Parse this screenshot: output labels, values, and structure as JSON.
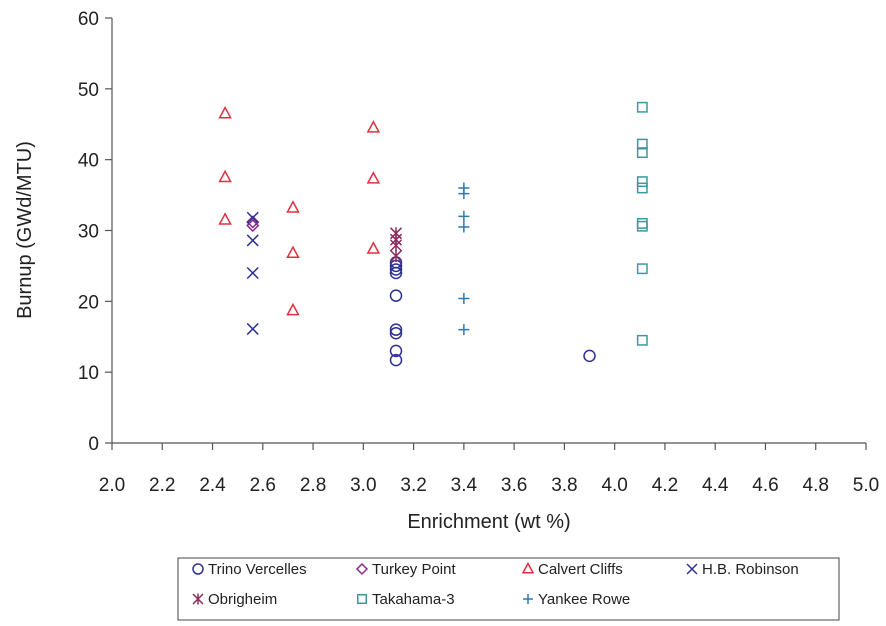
{
  "chart_data": {
    "type": "scatter",
    "title": "",
    "xlabel": "Enrichment (wt %)",
    "ylabel": "Burnup (GWd/MTU)",
    "xlim": [
      2.0,
      5.0
    ],
    "ylim": [
      0,
      60
    ],
    "x_ticks": [
      "2.0",
      "2.2",
      "2.4",
      "2.6",
      "2.8",
      "3.0",
      "3.2",
      "3.4",
      "3.6",
      "3.8",
      "4.0",
      "4.2",
      "4.4",
      "4.6",
      "4.8",
      "5.0"
    ],
    "y_ticks": [
      "0",
      "10",
      "20",
      "30",
      "40",
      "50",
      "60"
    ],
    "grid": false,
    "legend_position": "bottom",
    "series": [
      {
        "name": "Trino Vercelles",
        "marker": "circle",
        "color": "#2e3192",
        "points": [
          [
            3.13,
            24.0
          ],
          [
            3.13,
            24.5
          ],
          [
            3.13,
            25.0
          ],
          [
            3.13,
            25.5
          ],
          [
            3.13,
            20.8
          ],
          [
            3.13,
            16.0
          ],
          [
            3.13,
            15.5
          ],
          [
            3.13,
            13.0
          ],
          [
            3.13,
            11.7
          ],
          [
            3.9,
            12.3
          ]
        ]
      },
      {
        "name": "Turkey Point",
        "marker": "diamond",
        "color": "#8b2a8b",
        "points": [
          [
            2.56,
            31.2
          ],
          [
            2.56,
            30.7
          ]
        ]
      },
      {
        "name": "Calvert Cliffs",
        "marker": "triangle",
        "color": "#e03040",
        "points": [
          [
            2.45,
            46.5
          ],
          [
            2.45,
            37.5
          ],
          [
            2.45,
            31.5
          ],
          [
            2.72,
            33.2
          ],
          [
            2.72,
            26.8
          ],
          [
            2.72,
            18.7
          ],
          [
            3.04,
            44.5
          ],
          [
            3.04,
            37.3
          ],
          [
            3.04,
            27.4
          ]
        ]
      },
      {
        "name": "H.B. Robinson",
        "marker": "x",
        "color": "#2e3192",
        "points": [
          [
            2.56,
            31.8
          ],
          [
            2.56,
            28.6
          ],
          [
            2.56,
            24.0
          ],
          [
            2.56,
            16.1
          ]
        ]
      },
      {
        "name": "Obrigheim",
        "marker": "asterisk",
        "color": "#8b2a5c",
        "points": [
          [
            3.13,
            29.6
          ],
          [
            3.13,
            28.7
          ],
          [
            3.13,
            27.9
          ],
          [
            3.13,
            26.4
          ]
        ]
      },
      {
        "name": "Takahama-3",
        "marker": "square",
        "color": "#3a9aa0",
        "points": [
          [
            4.11,
            47.4
          ],
          [
            4.11,
            42.2
          ],
          [
            4.11,
            41.0
          ],
          [
            4.11,
            36.9
          ],
          [
            4.11,
            36.0
          ],
          [
            4.11,
            31.0
          ],
          [
            4.11,
            30.6
          ],
          [
            4.11,
            24.6
          ],
          [
            4.11,
            14.5
          ]
        ]
      },
      {
        "name": "Yankee Rowe",
        "marker": "plus",
        "color": "#2a7ab8",
        "points": [
          [
            3.4,
            36.0
          ],
          [
            3.4,
            35.2
          ],
          [
            3.4,
            32.0
          ],
          [
            3.4,
            30.5
          ],
          [
            3.4,
            20.4
          ],
          [
            3.4,
            16.0
          ]
        ]
      }
    ]
  }
}
